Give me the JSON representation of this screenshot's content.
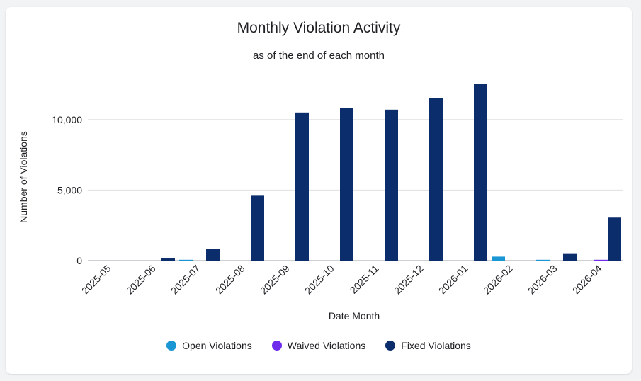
{
  "chart_data": {
    "type": "bar",
    "title": "Monthly Violation Activity",
    "subtitle": "as of the end of each month",
    "xlabel": "Date Month",
    "ylabel": "Number of Violations",
    "ylim": [
      0,
      12800
    ],
    "yticks": [
      0,
      5000,
      10000
    ],
    "ytick_labels": [
      "0",
      "5,000",
      "10,000"
    ],
    "grid": true,
    "legend_position": "bottom",
    "categories": [
      "2025-05",
      "2025-06",
      "2025-07",
      "2025-08",
      "2025-09",
      "2025-10",
      "2025-11",
      "2025-12",
      "2026-01",
      "2026-02",
      "2026-03",
      "2026-04"
    ],
    "series": [
      {
        "name": "Open Violations",
        "color": "#1a96d4",
        "values": [
          0,
          0,
          60,
          0,
          0,
          0,
          0,
          0,
          0,
          280,
          60,
          0
        ]
      },
      {
        "name": "Waived Violations",
        "color": "#6e2bec",
        "values": [
          0,
          0,
          0,
          0,
          0,
          0,
          0,
          0,
          0,
          0,
          0,
          60
        ]
      },
      {
        "name": "Fixed Violations",
        "color": "#0b2d6b",
        "values": [
          0,
          150,
          820,
          4600,
          10500,
          10800,
          10700,
          11500,
          12500,
          0,
          520,
          3050
        ]
      }
    ]
  }
}
